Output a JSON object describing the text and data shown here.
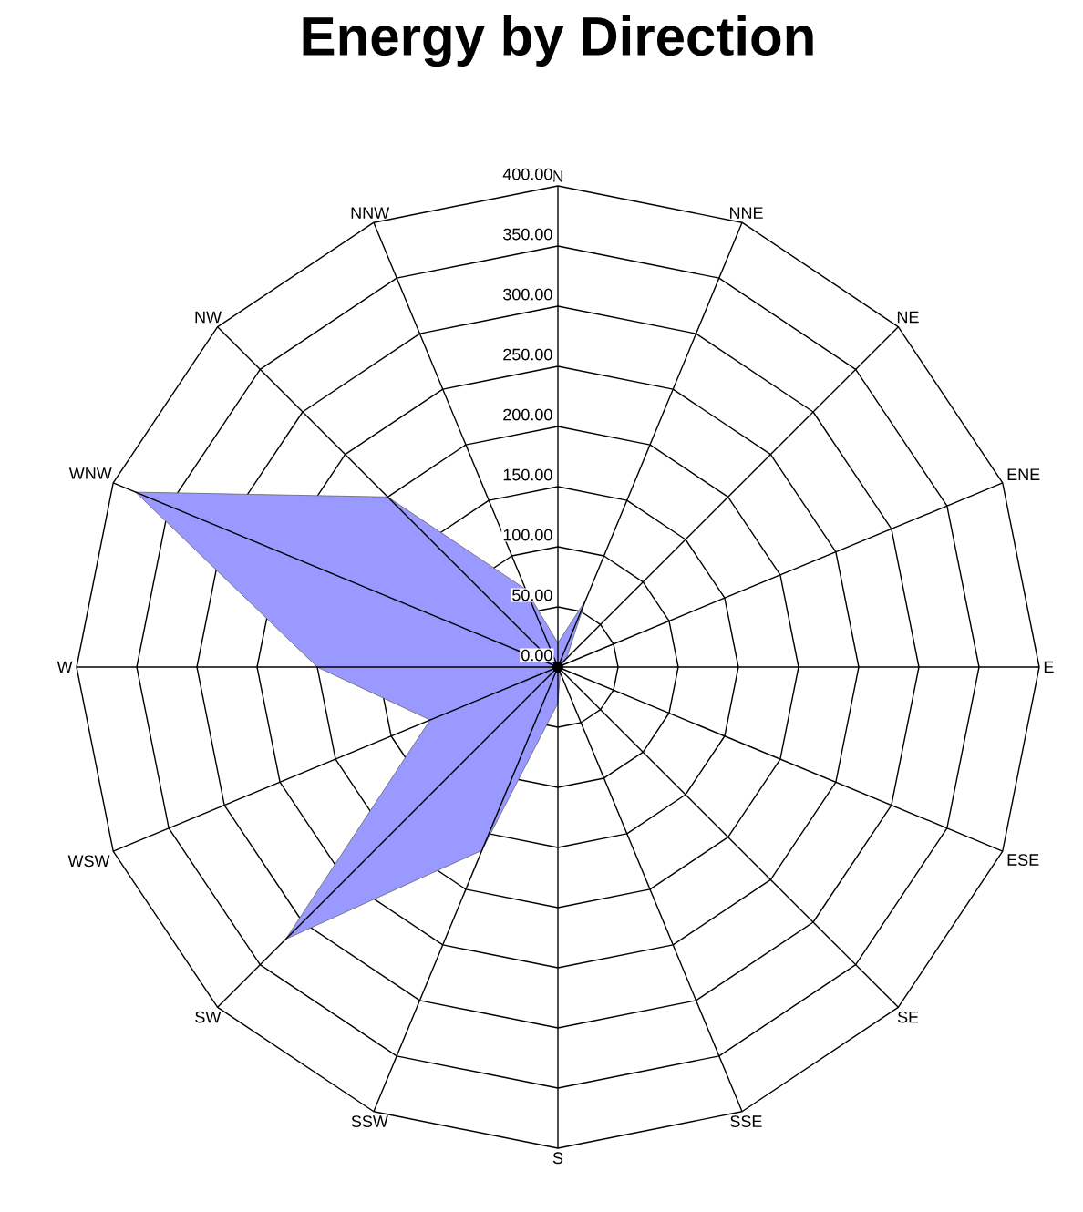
{
  "chart_data": {
    "type": "radar",
    "title": "Energy by Direction",
    "categories": [
      "N",
      "NNE",
      "NE",
      "ENE",
      "E",
      "ESE",
      "SE",
      "SSE",
      "S",
      "SSW",
      "SW",
      "WSW",
      "W",
      "WNW",
      "NW",
      "NNW"
    ],
    "series": [
      {
        "color": "#9999ff",
        "values": [
          20,
          60,
          10,
          3,
          2,
          2,
          3,
          5,
          30,
          165,
          320,
          115,
          200,
          380,
          200,
          70
        ]
      }
    ],
    "ylim": [
      0,
      400
    ],
    "yticks": [
      {
        "value": 0,
        "label": "0.00"
      },
      {
        "value": 50,
        "label": "50.00"
      },
      {
        "value": 100,
        "label": "100.00"
      },
      {
        "value": 150,
        "label": "150.00"
      },
      {
        "value": 200,
        "label": "200.00"
      },
      {
        "value": 250,
        "label": "250.00"
      },
      {
        "value": 300,
        "label": "300.00"
      },
      {
        "value": 350,
        "label": "350.00"
      },
      {
        "value": 400,
        "label": "400.00"
      }
    ]
  }
}
